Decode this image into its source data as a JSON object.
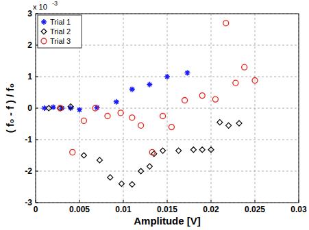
{
  "chart_data": {
    "type": "scatter",
    "x_label": "Amplitude [V]",
    "y_label": "( f₀ - f ) / f₀",
    "annotations": [
      "x 10",
      "-3"
    ],
    "xlim": [
      0,
      0.03
    ],
    "xticks": [
      0,
      0.005,
      0.01,
      0.015,
      0.02,
      0.025,
      0.03
    ],
    "ylim": [
      -3,
      3
    ],
    "yticks": [
      -3,
      -2,
      -1,
      0,
      1,
      2,
      3
    ],
    "grid": true,
    "legend": "upper-left",
    "series": [
      {
        "name": "Trial 1",
        "color": "#1a1aff",
        "marker": "asterisk",
        "x": [
          0.001,
          0.002,
          0.003,
          0.004,
          0.005,
          0.007,
          0.0092,
          0.011,
          0.013,
          0.015,
          0.0173
        ],
        "values": [
          0,
          0.03,
          0,
          0,
          -0.05,
          0.02,
          0.2,
          0.6,
          0.75,
          1.0,
          1.12
        ]
      },
      {
        "name": "Trial 2",
        "color": "#000000",
        "marker": "diamond",
        "x": [
          0.0015,
          0.0028,
          0.004,
          0.0055,
          0.0073,
          0.0085,
          0.0098,
          0.011,
          0.012,
          0.013,
          0.0135,
          0.0145,
          0.0163,
          0.018,
          0.019,
          0.02,
          0.021,
          0.022,
          0.0232
        ],
        "values": [
          0,
          0,
          0.05,
          -1.5,
          -1.65,
          -2.2,
          -2.4,
          -2.42,
          -2.0,
          -1.85,
          -1.45,
          -1.35,
          -1.35,
          -1.32,
          -1.32,
          -1.32,
          -0.45,
          -0.55,
          -0.48
        ]
      },
      {
        "name": "Trial 3",
        "color": "#e8231a",
        "marker": "circle",
        "x": [
          0.0028,
          0.0042,
          0.0055,
          0.0068,
          0.0082,
          0.0097,
          0.011,
          0.012,
          0.0133,
          0.0145,
          0.0155,
          0.017,
          0.019,
          0.0205,
          0.0217,
          0.0228,
          0.0238,
          0.025
        ],
        "values": [
          0,
          -1.4,
          -0.4,
          0,
          -0.25,
          -0.15,
          -0.3,
          -0.55,
          -1.4,
          -0.25,
          -0.6,
          0.25,
          0.4,
          0.28,
          2.7,
          0.8,
          1.3,
          0.88
        ]
      }
    ]
  }
}
